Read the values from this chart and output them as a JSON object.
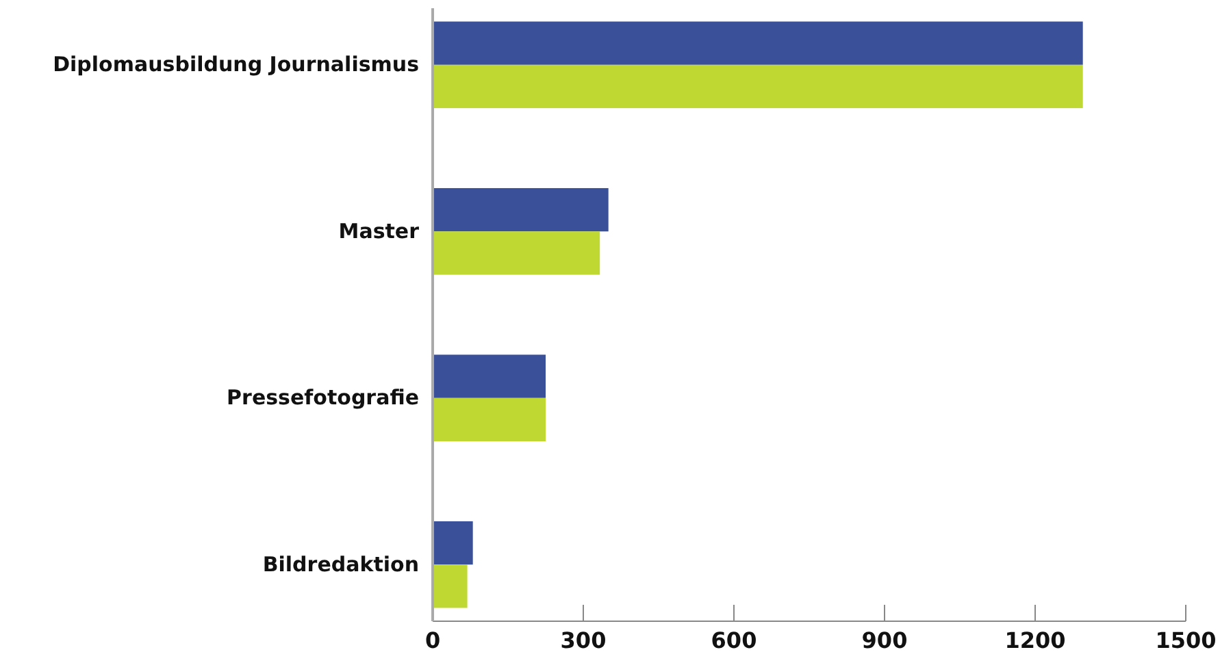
{
  "chart_data": {
    "type": "bar",
    "orientation": "horizontal",
    "categories": [
      "Diplomausbildung Journalismus",
      "Master",
      "Pressefotografie",
      "Bildredaktion"
    ],
    "series": [
      {
        "color": "#3a5098",
        "values": [
          1295,
          350,
          225,
          80
        ]
      },
      {
        "color": "#c0d932",
        "values": [
          1295,
          333,
          225,
          69
        ]
      }
    ],
    "xlim": [
      0,
      1500
    ],
    "xticks": [
      0,
      300,
      600,
      900,
      1200,
      1500
    ],
    "grid": false
  }
}
